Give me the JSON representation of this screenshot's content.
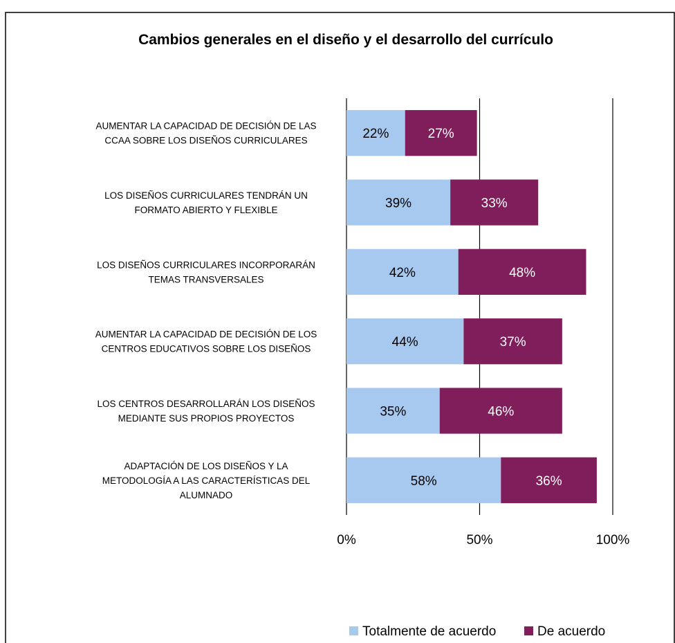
{
  "chart_data": {
    "type": "bar",
    "orientation": "horizontal",
    "stacked": true,
    "title": "Cambios generales en el diseño y el desarrollo del currículo",
    "categories": [
      [
        "AUMENTAR LA CAPACIDAD DE DECISIÓN DE LAS",
        "CCAA SOBRE LOS DISEÑOS CURRICULARES"
      ],
      [
        "LOS DISEÑOS CURRICULARES TENDRÁN UN",
        "FORMATO ABIERTO Y FLEXIBLE"
      ],
      [
        "LOS DISEÑOS CURRICULARES INCORPORARÁN",
        "TEMAS TRANSVERSALES"
      ],
      [
        "AUMENTAR LA CAPACIDAD DE DECISIÓN DE LOS",
        "CENTROS EDUCATIVOS SOBRE LOS DISEÑOS"
      ],
      [
        "LOS CENTROS DESARROLLARÁN LOS DISEÑOS",
        "MEDIANTE SUS PROPIOS PROYECTOS"
      ],
      [
        "ADAPTACIÓN DE LOS DISEÑOS Y LA",
        "METODOLOGÍA A LAS CARACTERÍSTICAS DEL",
        "ALUMNADO"
      ]
    ],
    "series": [
      {
        "name": "Totalmente de acuerdo",
        "color": "#a8c9ef",
        "label_color": "#000000",
        "values": [
          22,
          39,
          42,
          44,
          35,
          58
        ]
      },
      {
        "name": "De acuerdo",
        "color": "#7f1e5b",
        "label_color": "#ffffff",
        "values": [
          27,
          33,
          48,
          37,
          46,
          36
        ]
      }
    ],
    "xlim": [
      0,
      100
    ],
    "x_ticks": [
      0,
      50,
      100
    ],
    "x_tick_labels": [
      "0%",
      "50%",
      "100%"
    ],
    "grid": true,
    "legend_position": "bottom-right"
  }
}
